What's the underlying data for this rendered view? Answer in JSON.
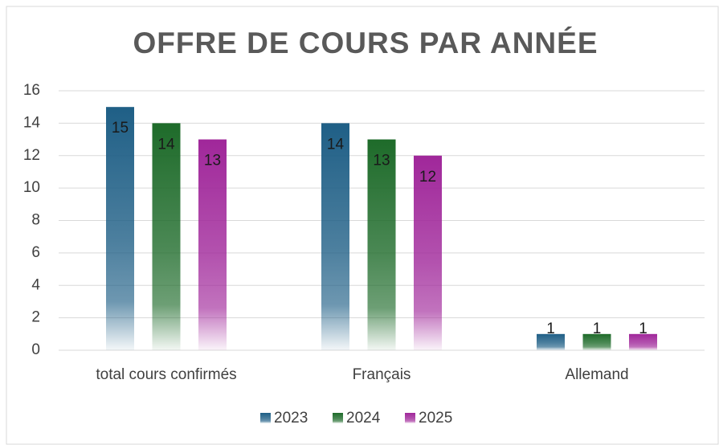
{
  "chart_data": {
    "type": "bar",
    "title": "OFFRE DE COURS PAR ANNÉE",
    "categories": [
      "total cours confirmés",
      "Français",
      "Allemand"
    ],
    "series": [
      {
        "name": "2023",
        "color": "#1f5f86",
        "values": [
          15,
          14,
          1
        ]
      },
      {
        "name": "2024",
        "color": "#1e6b2a",
        "values": [
          14,
          13,
          1
        ]
      },
      {
        "name": "2025",
        "color": "#a0279a",
        "values": [
          13,
          12,
          1
        ]
      }
    ],
    "ylim": [
      0,
      16
    ],
    "yticks": [
      0,
      2,
      4,
      6,
      8,
      10,
      12,
      14,
      16
    ],
    "grid": true,
    "legend": "bottom"
  }
}
